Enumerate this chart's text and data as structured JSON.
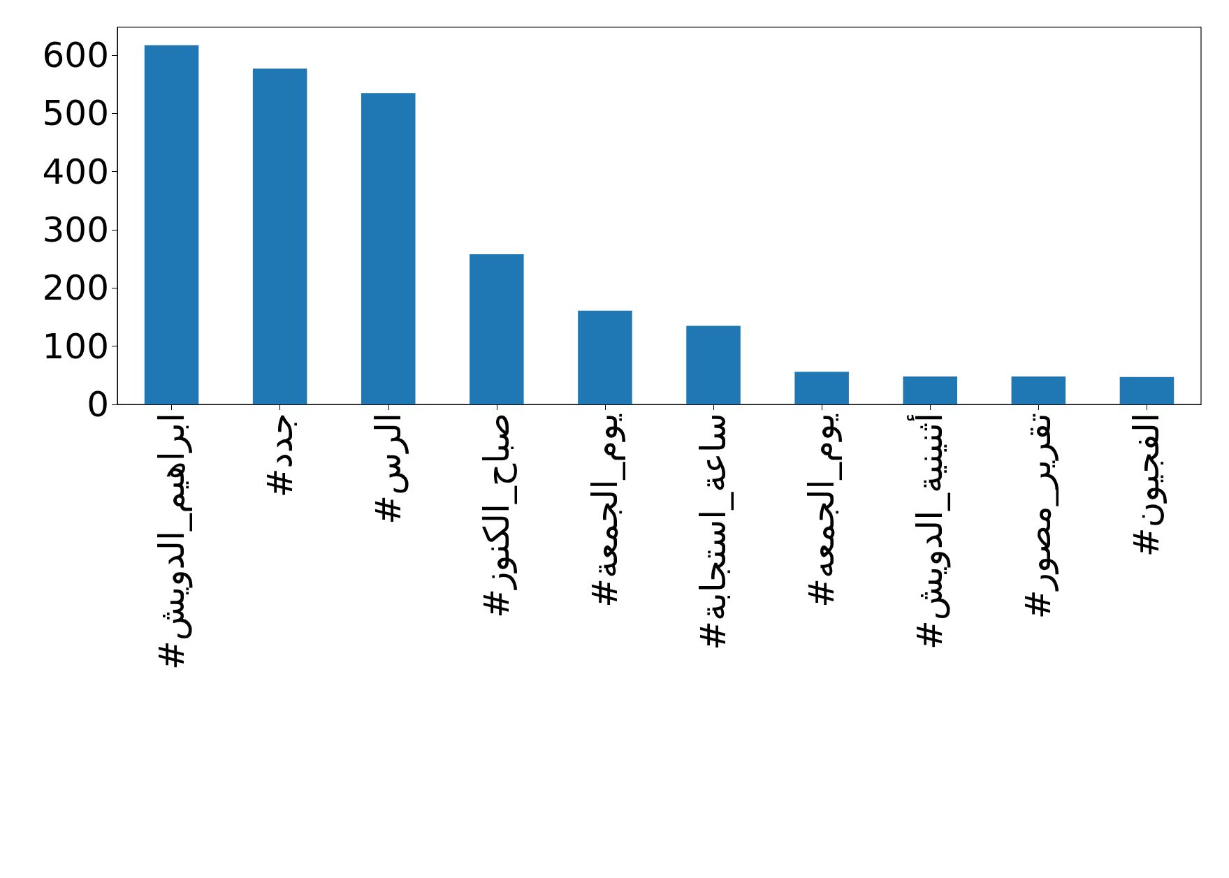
{
  "chart_data": {
    "type": "bar",
    "categories": [
      "#ابراهيم_الدويش",
      "#جدد",
      "#الرس",
      "#صباح_الكنوز",
      "#يوم_الجمعة",
      "#ساعة_استجابة",
      "#يوم_الجمعه",
      "#أثنينية_الدويش",
      "#تقرير_مصور",
      "#الفجيون"
    ],
    "values": [
      617,
      577,
      535,
      258,
      161,
      135,
      56,
      48,
      48,
      47
    ],
    "color": "#1f77b4",
    "ylim": [
      0,
      648
    ],
    "yticks": [
      0,
      100,
      200,
      300,
      400,
      500,
      600
    ],
    "grid": false
  }
}
